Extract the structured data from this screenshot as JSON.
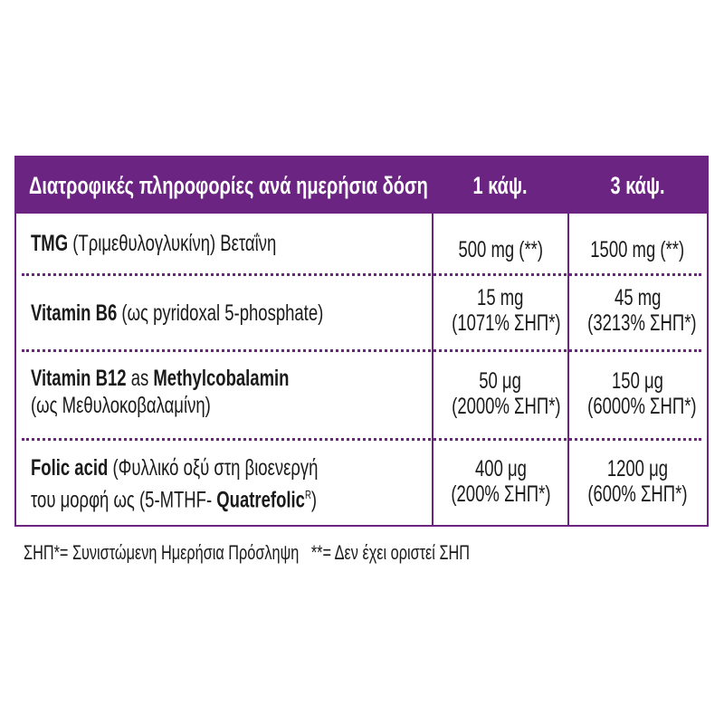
{
  "header": {
    "title": "Διατροφικές πληροφορίες ανά ημερήσια δόση",
    "col1": "1 κάψ.",
    "col2": "3 κάψ."
  },
  "rows": [
    {
      "name_bold": "TMG",
      "name_rest": " (Τριμεθυλογλυκίνη) Βεταΐνη",
      "v1": [
        "500 mg (**)"
      ],
      "v2": [
        "1500 mg (**)"
      ]
    },
    {
      "name_bold": "Vitamin B6",
      "name_rest": " (ως pyridoxal 5-phosphate)",
      "v1": [
        "15 mg",
        "(1071% ΣΗΠ*)"
      ],
      "v2": [
        "45 mg",
        "(3213% ΣΗΠ*)"
      ]
    },
    {
      "name_bold": "Vitamin B12",
      "name_mid": " as ",
      "name_bold2": "Methylcobalamin",
      "name_line2": "(ως Μεθυλοκοβαλαμίνη)",
      "v1": [
        "50 μg",
        "(2000% ΣΗΠ*)"
      ],
      "v2": [
        "150 μg",
        "(6000% ΣΗΠ*)"
      ]
    },
    {
      "name_bold": "Folic acid",
      "name_rest": " (Φυλλικό οξύ στη βιοενεργή",
      "name_line2": "του μορφή ως (5-MTHF- ",
      "name_bold2": "Quatrefolic",
      "name_sup": "R",
      "name_end": ")",
      "v1": [
        "400 μg",
        "(200% ΣΗΠ*)"
      ],
      "v2": [
        "1200 μg",
        "(600% ΣΗΠ*)"
      ]
    }
  ],
  "footnote": {
    "a": "ΣΗΠ*= Συνιστώμενη Ημερήσια Πρόσληψη",
    "b": "**= Δεν έχει οριστεί ΣΗΠ"
  },
  "colors": {
    "accent": "#6b2481"
  }
}
